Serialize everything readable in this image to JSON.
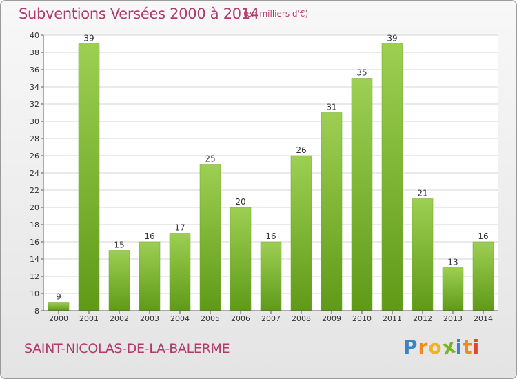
{
  "header": {
    "title": "Subventions Versées 2000 à 2014",
    "unit": "(en milliers d'€)"
  },
  "footer": {
    "commune": "SAINT-NICOLAS-DE-LA-BALERME",
    "logo_letters": [
      "P",
      "r",
      "o",
      "x",
      "i",
      "t",
      "i"
    ]
  },
  "colors": {
    "title": "#b03a6a",
    "bar_light": "#9dcf52",
    "bar_dark": "#5f9a17",
    "logo": [
      "#3a84c6",
      "#ef8a1c",
      "#f0b51e",
      "#7ab51d",
      "#3a84c6",
      "#ef8a1c",
      "#e6432e"
    ]
  },
  "chart_data": {
    "type": "bar",
    "categories": [
      "2000",
      "2001",
      "2002",
      "2003",
      "2004",
      "2005",
      "2006",
      "2007",
      "2008",
      "2009",
      "2010",
      "2011",
      "2012",
      "2013",
      "2014"
    ],
    "values": [
      9,
      39,
      15,
      16,
      17,
      25,
      20,
      16,
      26,
      31,
      35,
      39,
      21,
      13,
      16
    ],
    "ylim": [
      8,
      40
    ],
    "yticks": [
      8,
      10,
      12,
      14,
      16,
      18,
      20,
      22,
      24,
      26,
      28,
      30,
      32,
      34,
      36,
      38,
      40
    ],
    "grid": true,
    "legend": "none"
  }
}
